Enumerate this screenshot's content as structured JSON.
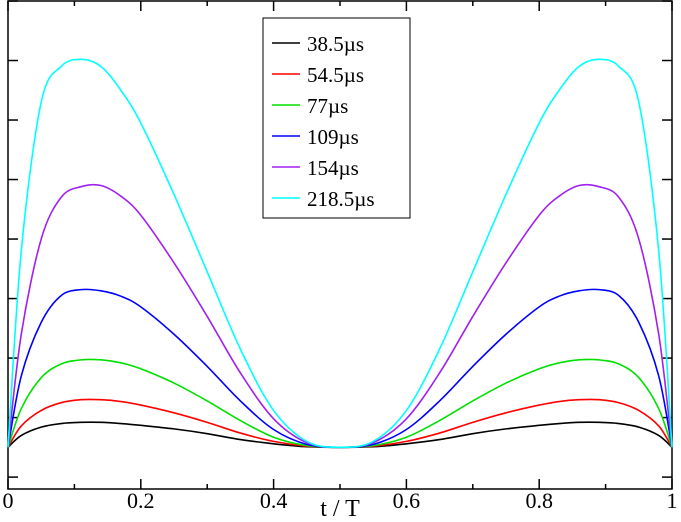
{
  "chart_data": {
    "type": "line",
    "title": "",
    "xlabel": "t / T",
    "ylabel": "",
    "xlim": [
      0,
      1
    ],
    "ylim": [
      -0.7,
      7.5
    ],
    "x_ticks": [
      0,
      0.2,
      0.4,
      0.6,
      0.8,
      1
    ],
    "x_tick_labels": [
      "0",
      "0.2",
      "0.4",
      "0.6",
      "0.8",
      "1"
    ],
    "y_ticks": [
      -0.5,
      0.5,
      1.5,
      2.5,
      3.5,
      4.5,
      5.5,
      6.5,
      7.5
    ],
    "y_tick_labels": [],
    "grid": false,
    "legend_position": "top-center",
    "x": [
      0,
      0.02,
      0.05,
      0.08,
      0.11,
      0.14,
      0.17,
      0.2,
      0.25,
      0.3,
      0.35,
      0.4,
      0.45,
      0.5,
      0.55,
      0.6,
      0.65,
      0.7,
      0.75,
      0.8,
      0.83,
      0.86,
      0.89,
      0.92,
      0.95,
      0.98,
      1
    ],
    "series": [
      {
        "name": "38.5µs",
        "color": "#000000",
        "values": [
          0,
          0.2,
          0.34,
          0.4,
          0.42,
          0.42,
          0.4,
          0.37,
          0.31,
          0.23,
          0.13,
          0.06,
          0.01,
          0,
          0.01,
          0.06,
          0.13,
          0.23,
          0.31,
          0.37,
          0.4,
          0.42,
          0.42,
          0.4,
          0.34,
          0.2,
          0
        ]
      },
      {
        "name": "54.5µs",
        "color": "#ff0000",
        "values": [
          0,
          0.36,
          0.62,
          0.75,
          0.8,
          0.8,
          0.77,
          0.71,
          0.58,
          0.42,
          0.24,
          0.1,
          0.02,
          0,
          0.02,
          0.1,
          0.24,
          0.42,
          0.58,
          0.71,
          0.77,
          0.8,
          0.8,
          0.75,
          0.62,
          0.36,
          0
        ]
      },
      {
        "name": "77µs",
        "color": "#00e000",
        "values": [
          0,
          0.65,
          1.17,
          1.4,
          1.47,
          1.47,
          1.42,
          1.32,
          1.08,
          0.78,
          0.45,
          0.17,
          0.03,
          0,
          0.03,
          0.17,
          0.45,
          0.78,
          1.08,
          1.32,
          1.42,
          1.47,
          1.47,
          1.4,
          1.17,
          0.65,
          0
        ]
      },
      {
        "name": "109µs",
        "color": "#0000ff",
        "values": [
          0,
          1.2,
          2.1,
          2.55,
          2.65,
          2.63,
          2.54,
          2.36,
          1.9,
          1.36,
          0.78,
          0.3,
          0.05,
          0,
          0.05,
          0.3,
          0.78,
          1.36,
          1.9,
          2.36,
          2.54,
          2.63,
          2.65,
          2.55,
          2.1,
          1.2,
          0
        ]
      },
      {
        "name": "154µs",
        "color": "#a020f0",
        "values": [
          0,
          1.9,
          3.5,
          4.2,
          4.38,
          4.4,
          4.22,
          3.9,
          3.1,
          2.2,
          1.25,
          0.48,
          0.08,
          0,
          0.08,
          0.48,
          1.25,
          2.2,
          3.1,
          3.9,
          4.22,
          4.4,
          4.38,
          4.2,
          3.5,
          1.9,
          0
        ]
      },
      {
        "name": "218.5µs",
        "color": "#00ffff",
        "values": [
          0,
          3.3,
          5.8,
          6.4,
          6.52,
          6.4,
          6.0,
          5.45,
          4.25,
          2.95,
          1.65,
          0.62,
          0.1,
          0,
          0.1,
          0.62,
          1.65,
          2.95,
          4.25,
          5.45,
          6.0,
          6.4,
          6.52,
          6.4,
          5.8,
          3.3,
          0
        ]
      }
    ]
  }
}
